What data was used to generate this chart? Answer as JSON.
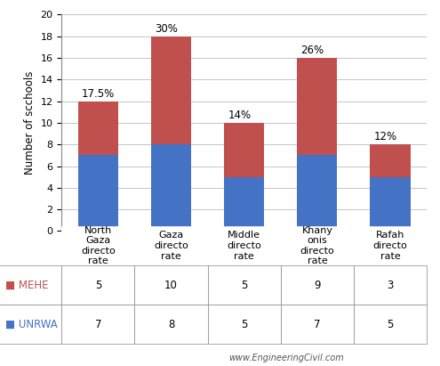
{
  "categories": [
    "North\nGaza\ndirecto\nrate",
    "Gaza\ndirecto\nrate",
    "Middle\ndirecto\nrate",
    "Khany\nonis\ndirecto\nrate",
    "Rafah\ndirecto\nrate"
  ],
  "mehe_values": [
    5,
    10,
    5,
    9,
    3
  ],
  "unrwa_values": [
    7,
    8,
    5,
    7,
    5
  ],
  "percentages": [
    "17.5%",
    "30%",
    "14%",
    "26%",
    "12%"
  ],
  "mehe_color": "#C0504D",
  "unrwa_color": "#4472C4",
  "ylabel": "Number of scchools",
  "ylim": [
    0,
    20
  ],
  "yticks": [
    0,
    2,
    4,
    6,
    8,
    10,
    12,
    14,
    16,
    18,
    20
  ],
  "watermark": "www.EngineeringCivil.com",
  "table_row_labels": [
    "■ MEHE",
    "■ UNRWA"
  ],
  "table_row_colors": [
    "#C0504D",
    "#4472C4"
  ],
  "table_values_mehe": [
    "5",
    "10",
    "5",
    "9",
    "3"
  ],
  "table_values_unrwa": [
    "7",
    "8",
    "5",
    "7",
    "5"
  ],
  "background_color": "#FFFFFF",
  "grid_color": "#BBBBBB",
  "bar_width": 0.55
}
